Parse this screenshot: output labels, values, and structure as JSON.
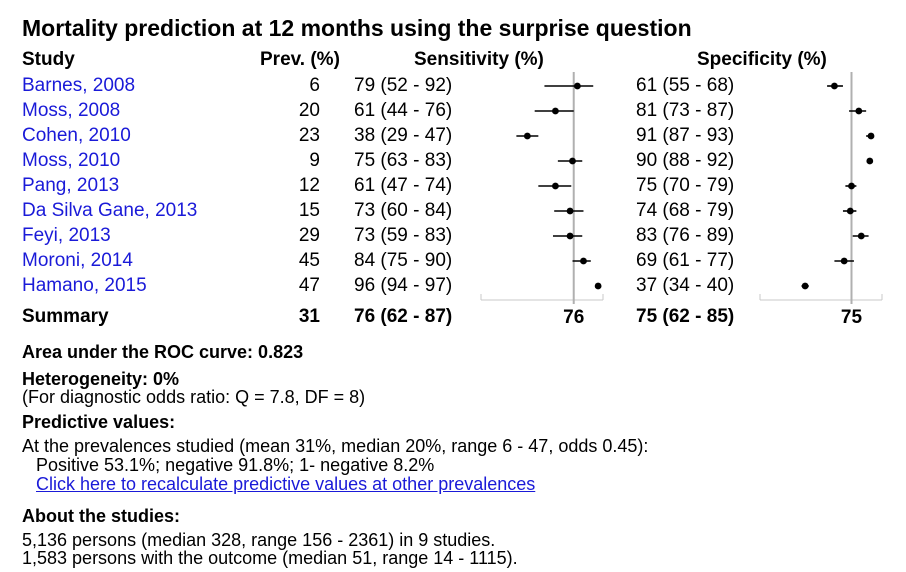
{
  "title": "Mortality prediction at 12 months using the surprise question",
  "headers": {
    "study": "Study",
    "prev": "Prev. (%)",
    "sens": "Sensitivity (%)",
    "spec": "Specificity (%)"
  },
  "rows": [
    {
      "study": "Barnes, 2008",
      "prev": "6",
      "sens": "79 (52 - 92)",
      "spec": "61 (55 - 68)"
    },
    {
      "study": "Moss, 2008",
      "prev": "20",
      "sens": "61 (44 - 76)",
      "spec": "81 (73 - 87)"
    },
    {
      "study": "Cohen, 2010",
      "prev": "23",
      "sens": "38 (29 - 47)",
      "spec": "91 (87 - 93)"
    },
    {
      "study": "Moss, 2010",
      "prev": "9",
      "sens": "75 (63 - 83)",
      "spec": "90 (88 - 92)"
    },
    {
      "study": "Pang, 2013",
      "prev": "12",
      "sens": "61 (47 - 74)",
      "spec": "75 (70 - 79)"
    },
    {
      "study": "Da Silva Gane, 2013",
      "prev": "15",
      "sens": "73 (60 - 84)",
      "spec": "74 (68 - 79)"
    },
    {
      "study": "Feyi, 2013",
      "prev": "29",
      "sens": "73 (59 - 83)",
      "spec": "83 (76 - 89)"
    },
    {
      "study": "Moroni, 2014",
      "prev": "45",
      "sens": "84 (75 - 90)",
      "spec": "69 (61 - 77)"
    },
    {
      "study": "Hamano, 2015",
      "prev": "47",
      "sens": "96 (94 - 97)",
      "spec": "37 (34 - 40)"
    }
  ],
  "summary": {
    "label": "Summary",
    "prev": "31",
    "sens": "76 (62 - 87)",
    "spec": "75 (62 - 85)"
  },
  "chart_data": {
    "type": "forest",
    "sensitivity": {
      "point": [
        79,
        61,
        38,
        75,
        61,
        73,
        73,
        84,
        96
      ],
      "lower": [
        52,
        44,
        29,
        63,
        47,
        60,
        59,
        75,
        94
      ],
      "upper": [
        92,
        76,
        47,
        83,
        74,
        84,
        83,
        90,
        97
      ],
      "summary": 76,
      "summary_label": "76"
    },
    "specificity": {
      "point": [
        61,
        81,
        91,
        90,
        75,
        74,
        83,
        69,
        37
      ],
      "lower": [
        55,
        73,
        87,
        88,
        70,
        68,
        76,
        61,
        34
      ],
      "upper": [
        68,
        87,
        93,
        92,
        79,
        79,
        89,
        77,
        40
      ],
      "summary": 75,
      "summary_label": "75"
    }
  },
  "stats": {
    "auc": "Area under the ROC curve: 0.823",
    "heterogeneity": "Heterogeneity: 0%",
    "heterogeneity_note": "(For diagnostic odds ratio: Q = 7.8, DF = 8)",
    "predictive_title": "Predictive values:",
    "predictive_line1": "At the prevalences studied (mean 31%, median 20%, range 6 - 47, odds 0.45):",
    "predictive_line2": "Positive 53.1%; negative 91.8%; 1- negative 8.2%",
    "recalc_link": "Click here to recalculate predictive values at other prevalences",
    "about_title": "About the studies:",
    "about_line1": "5,136 persons (median 328, range 156 - 2361) in 9 studies.",
    "about_line2": "1,583 persons with the outcome (median 51, range 14 - 1115)."
  }
}
